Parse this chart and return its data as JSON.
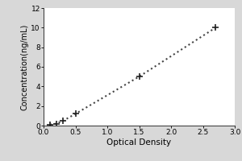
{
  "x_data": [
    0.1,
    0.2,
    0.31,
    0.5,
    1.5,
    2.7
  ],
  "y_data": [
    0.1,
    0.2,
    0.5,
    1.2,
    5.0,
    10.0
  ],
  "xlabel": "Optical Density",
  "ylabel": "Concentration(ng/mL)",
  "xlim": [
    0,
    3
  ],
  "ylim": [
    0,
    12
  ],
  "xticks": [
    0,
    0.5,
    1,
    1.5,
    2,
    2.5,
    3
  ],
  "yticks": [
    0,
    2,
    4,
    6,
    8,
    10,
    12
  ],
  "marker": "+",
  "marker_color": "#222222",
  "line_color": "#444444",
  "line_style": "dotted",
  "marker_size": 6,
  "line_width": 1.5,
  "plot_bg": "#ffffff",
  "fig_bg": "#d8d8d8",
  "xlabel_fontsize": 7.5,
  "ylabel_fontsize": 7,
  "tick_fontsize": 6.5
}
